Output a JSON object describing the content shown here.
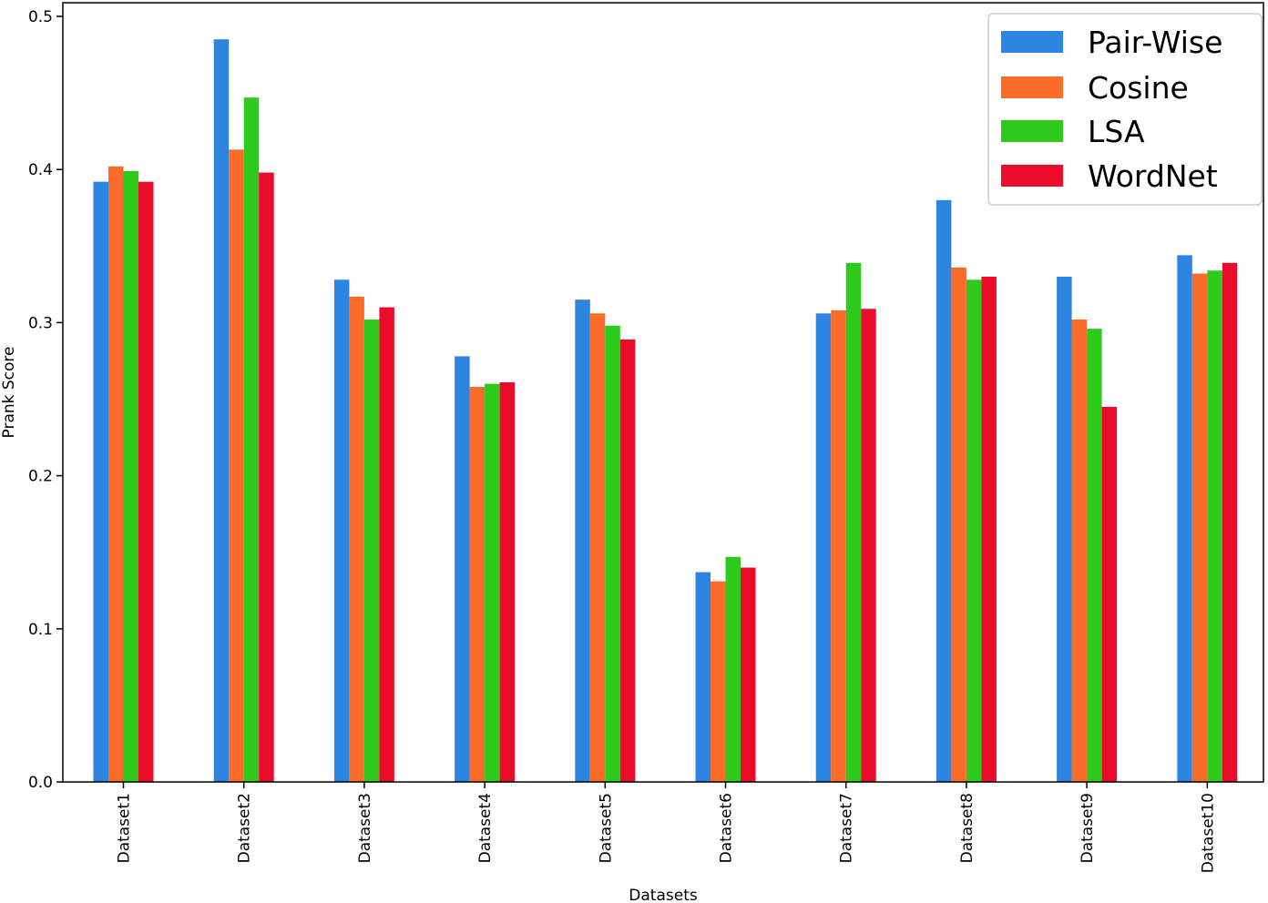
{
  "chart_data": {
    "type": "bar",
    "title": "",
    "xlabel": "Datasets",
    "ylabel": "Prank Score",
    "ylim": [
      0,
      0.5
    ],
    "yticks": [
      "0.0",
      "0.1",
      "0.2",
      "0.3",
      "0.4",
      "0.5"
    ],
    "categories": [
      "Dataset1",
      "Dataset2",
      "Dataset3",
      "Dataset4",
      "Dataset5",
      "Dataset6",
      "Dataset7",
      "Dataset8",
      "Dataset9",
      "Dataset10"
    ],
    "series": [
      {
        "name": "Pair-Wise",
        "color": "#2c85e0",
        "values": [
          0.392,
          0.485,
          0.328,
          0.278,
          0.315,
          0.137,
          0.306,
          0.38,
          0.33,
          0.344
        ]
      },
      {
        "name": "Cosine",
        "color": "#fb6c2b",
        "values": [
          0.402,
          0.413,
          0.317,
          0.258,
          0.306,
          0.131,
          0.308,
          0.336,
          0.302,
          0.332
        ]
      },
      {
        "name": "LSA",
        "color": "#2ecb1d",
        "values": [
          0.399,
          0.447,
          0.302,
          0.26,
          0.298,
          0.147,
          0.339,
          0.328,
          0.296,
          0.334
        ]
      },
      {
        "name": "WordNet",
        "color": "#eb0c2c",
        "values": [
          0.392,
          0.398,
          0.31,
          0.261,
          0.289,
          0.14,
          0.309,
          0.33,
          0.245,
          0.339
        ]
      }
    ],
    "grid": false,
    "legend_position": "top-right"
  }
}
